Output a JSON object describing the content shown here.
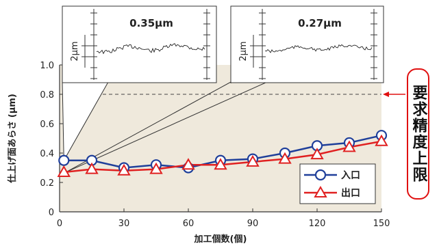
{
  "chart_data": {
    "type": "line",
    "xlabel": "加工個数(個)",
    "ylabel": "仕上げ面あらさ (μm)",
    "xlim": [
      0,
      150
    ],
    "ylim": [
      0,
      1.0
    ],
    "x_ticks": [
      0,
      30,
      60,
      90,
      120,
      150
    ],
    "y_ticks": [
      "0",
      "0.2",
      "0.4",
      "0.6",
      "0.8",
      "1.0"
    ],
    "y_tick_values": [
      0,
      0.2,
      0.4,
      0.6,
      0.8,
      1.0
    ],
    "requirement": {
      "value": 0.8,
      "label": "要求精度上限"
    },
    "series": [
      {
        "name": "入口",
        "color": "#1f3f9a",
        "marker": "circle",
        "x": [
          2,
          15,
          30,
          45,
          60,
          75,
          90,
          105,
          120,
          135,
          150
        ],
        "y": [
          0.35,
          0.35,
          0.3,
          0.32,
          0.3,
          0.35,
          0.36,
          0.4,
          0.45,
          0.47,
          0.52
        ]
      },
      {
        "name": "出口",
        "color": "#e02020",
        "marker": "triangle",
        "x": [
          2,
          15,
          30,
          45,
          60,
          75,
          90,
          105,
          120,
          135,
          150
        ],
        "y": [
          0.27,
          0.29,
          0.28,
          0.29,
          0.32,
          0.32,
          0.34,
          0.36,
          0.39,
          0.44,
          0.48
        ]
      }
    ],
    "insets": [
      {
        "title": "0.35μm",
        "scale_label": "2μm",
        "points_to_series": 0
      },
      {
        "title": "0.27μm",
        "scale_label": "2μm",
        "points_to_series": 1
      }
    ]
  }
}
